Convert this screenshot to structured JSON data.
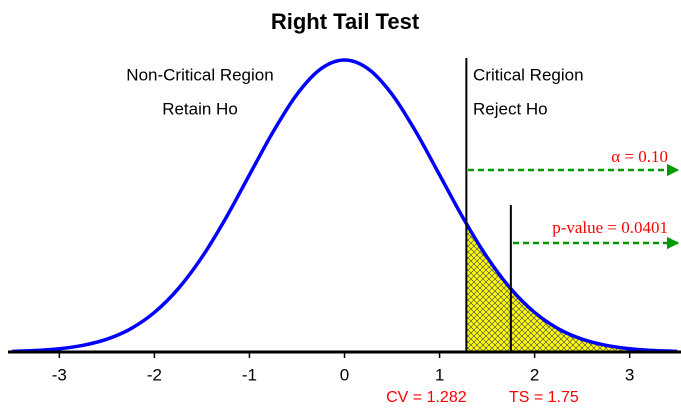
{
  "chart_data": {
    "type": "line",
    "title": "Right Tail Test",
    "x": [
      -3.5,
      -3.25,
      -3,
      -2.75,
      -2.5,
      -2.25,
      -2,
      -1.75,
      -1.5,
      -1.25,
      -1,
      -0.75,
      -0.5,
      -0.25,
      0,
      0.25,
      0.5,
      0.75,
      1,
      1.25,
      1.5,
      1.75,
      2,
      2.25,
      2.5,
      2.75,
      3,
      3.25,
      3.5
    ],
    "values": [
      0.0009,
      0.002,
      0.0044,
      0.0091,
      0.0175,
      0.0317,
      0.054,
      0.0863,
      0.1295,
      0.1826,
      0.242,
      0.3011,
      0.3521,
      0.3867,
      0.3989,
      0.3867,
      0.3521,
      0.3011,
      0.242,
      0.1826,
      0.1295,
      0.0863,
      0.054,
      0.0317,
      0.0175,
      0.0091,
      0.0044,
      0.002,
      0.0009
    ],
    "color": "#0000ff",
    "xlim": [
      -3.54,
      3.54
    ],
    "xticks": [
      -3,
      -2,
      -1,
      0,
      1,
      2,
      3
    ],
    "ylim": [
      0,
      0.4
    ],
    "regions": [
      {
        "label": "Non-Critical Region",
        "action": "Retain Ho"
      },
      {
        "label": "Critical Region",
        "action": "Reject Ho"
      }
    ],
    "critical_value": {
      "value": 1.282,
      "label": "CV = 1.282"
    },
    "test_statistic": {
      "value": 1.75,
      "label": "TS = 1.75"
    },
    "alpha_label": "α = 0.10",
    "p_value_label": "p-value = 0.0401"
  }
}
